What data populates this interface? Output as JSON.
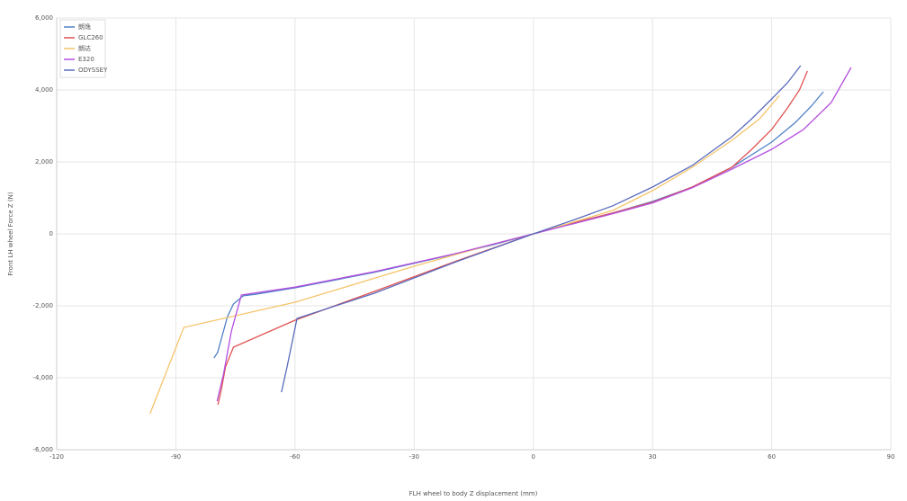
{
  "chart_data": {
    "type": "line",
    "xlabel": "FLH wheel to body Z displacement (mm)",
    "ylabel": "Front LH wheel Force Z (N)",
    "xlim": [
      -120,
      90
    ],
    "xticks": [
      -120,
      -90,
      -60,
      -30,
      0,
      30,
      60,
      90
    ],
    "ylim": [
      -6000,
      6000
    ],
    "yticks": [
      {
        "value": -6000,
        "label": "-6,000"
      },
      {
        "value": -4000,
        "label": "-4,000"
      },
      {
        "value": -2000,
        "label": "-2,000"
      },
      0,
      {
        "value": 2000,
        "label": "2,000"
      },
      {
        "value": 4000,
        "label": "4,000"
      },
      {
        "value": 6000,
        "label": "6,000"
      }
    ],
    "grid": true,
    "legend": "top-left",
    "series": [
      {
        "name": "朗逸",
        "color": "#4f81c7",
        "x": [
          -80.4,
          -79.5,
          -78.5,
          -77,
          -75.5,
          -73,
          -70,
          -60,
          -40,
          -20,
          -10,
          0,
          10,
          20,
          30,
          40,
          50,
          60,
          66,
          70,
          73
        ],
        "values": [
          -3450,
          -3300,
          -2900,
          -2300,
          -1950,
          -1720,
          -1680,
          -1500,
          -1070,
          -570,
          -300,
          0,
          300,
          580,
          900,
          1300,
          1850,
          2550,
          3100,
          3550,
          3950
        ]
      },
      {
        "name": "GLC260",
        "color": "#e05252",
        "x": [
          -79.4,
          -78.5,
          -77.5,
          -75.5,
          -60,
          -40,
          -20,
          0,
          10,
          20,
          30,
          40,
          50,
          55,
          60,
          64,
          67,
          69
        ],
        "values": [
          -4750,
          -4300,
          -3700,
          -3150,
          -2400,
          -1600,
          -780,
          0,
          300,
          580,
          880,
          1300,
          1850,
          2350,
          2900,
          3500,
          4000,
          4525
        ]
      },
      {
        "name": "朗达",
        "color": "#f5c46a",
        "x": [
          -96.5,
          -88,
          -60,
          -30,
          -10,
          0,
          20,
          30,
          40,
          50,
          57,
          62
        ],
        "values": [
          -5000,
          -2600,
          -1900,
          -900,
          -280,
          0,
          650,
          1200,
          1850,
          2600,
          3200,
          3850
        ]
      },
      {
        "name": "E320",
        "color": "#b44fe0",
        "x": [
          -79.6,
          -78,
          -76,
          -73.5,
          -60,
          -40,
          -20,
          0,
          20,
          30,
          40,
          50,
          60,
          68,
          75,
          80
        ],
        "values": [
          -4650,
          -3900,
          -2700,
          -1700,
          -1480,
          -1050,
          -560,
          0,
          560,
          860,
          1280,
          1800,
          2350,
          2900,
          3650,
          4625
        ]
      },
      {
        "name": "ODYSSEY",
        "color": "#5a6bbd",
        "x": [
          -63.4,
          -62,
          -60.5,
          -59.5,
          -40,
          -20,
          -10,
          0,
          10,
          20,
          30,
          40,
          50,
          55,
          60,
          64,
          67.3
        ],
        "values": [
          -4400,
          -3700,
          -2900,
          -2350,
          -1650,
          -800,
          -400,
          0,
          380,
          780,
          1300,
          1900,
          2700,
          3200,
          3750,
          4200,
          4675
        ]
      }
    ]
  }
}
